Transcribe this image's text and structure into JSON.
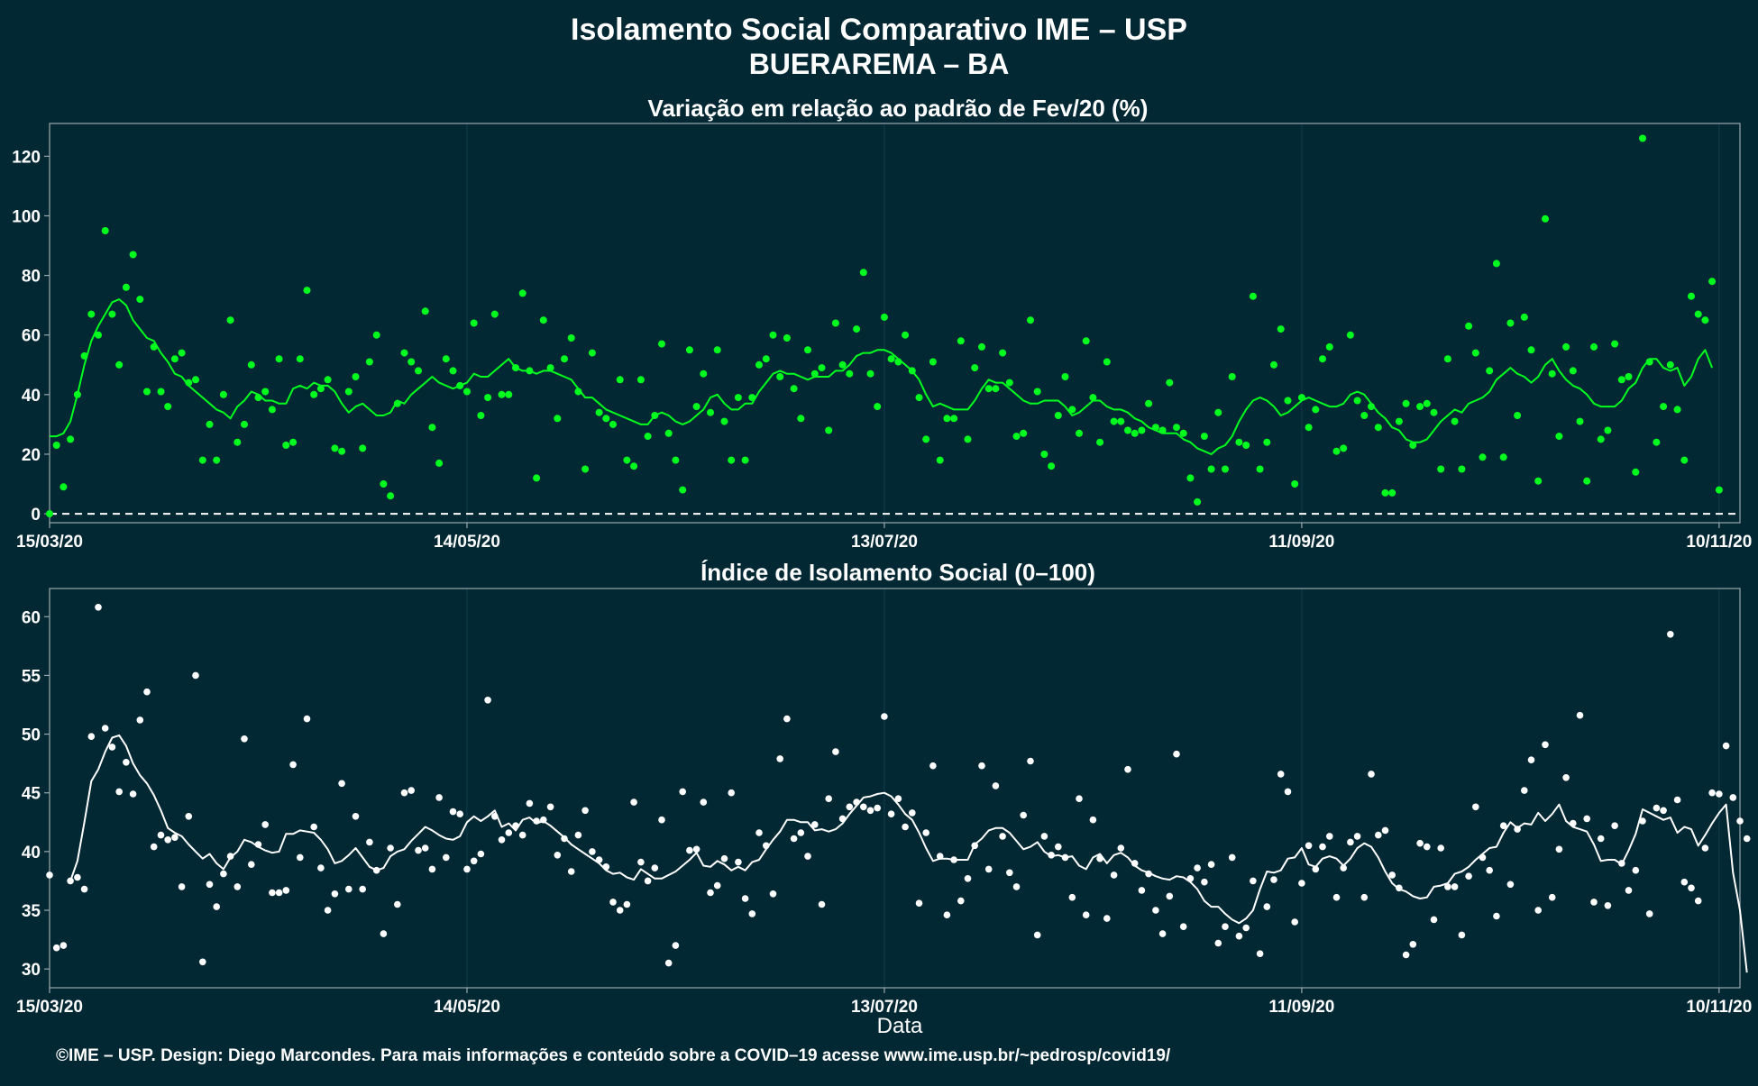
{
  "title_line1": "Isolamento Social Comparativo IME – USP",
  "title_line2": "BUERAREMA – BA",
  "xlabel": "Data",
  "footer": "©IME – USP. Design: Diego Marcondes. Para mais informações e conteúdo sobre a COVID–19 acesse www.ime.usp.br/~pedrosp/covid19/",
  "colors": {
    "background": "#022834",
    "panel_border": "#9aa7ab",
    "grid": "#0e3a46",
    "variation": "#00ff1e",
    "index": "#ffffff",
    "text": "#ffffff"
  },
  "chart_data": [
    {
      "type": "scatter",
      "title": "Variação em relação ao padrão de Fev/20 (%)",
      "xlim": [
        "2020-03-15",
        "2020-11-13"
      ],
      "x_ticks": [
        "15/03/20",
        "14/05/20",
        "13/07/20",
        "11/09/20",
        "10/11/20"
      ],
      "ylim": [
        -3,
        131
      ],
      "y_ticks": [
        0,
        20,
        40,
        60,
        80,
        100,
        120
      ],
      "reference_line": 0,
      "grid": true,
      "series": [
        {
          "kind": "points",
          "x_start": "2020-03-15",
          "step_days": 1,
          "values": [
            0,
            23,
            9,
            25,
            40,
            53,
            67,
            60,
            95,
            67,
            50,
            76,
            87,
            72,
            41,
            56,
            41,
            36,
            52,
            54,
            44,
            45,
            18,
            30,
            18,
            40,
            65,
            24,
            30,
            50,
            39,
            41,
            35,
            52,
            23,
            24,
            52,
            75,
            40,
            42,
            45,
            22,
            21,
            41,
            46,
            22,
            51,
            60,
            10,
            6,
            37,
            54,
            51,
            48,
            68,
            29,
            17,
            52,
            48,
            43,
            41,
            64,
            33,
            39,
            67,
            40,
            40,
            49,
            74,
            48,
            12,
            65,
            49,
            32,
            52,
            59,
            41,
            15,
            54,
            34,
            32,
            30,
            45,
            18,
            16,
            45,
            26,
            33,
            57,
            27,
            18,
            8,
            55,
            36,
            47,
            34,
            55,
            31,
            18,
            39,
            18,
            39,
            50,
            52,
            60,
            46,
            59,
            42,
            32,
            55,
            47,
            49,
            28,
            64,
            50,
            47,
            62,
            81,
            47,
            36,
            66,
            52,
            51,
            60,
            48,
            39,
            25,
            51,
            18,
            32,
            32,
            58,
            25,
            49,
            56,
            42,
            42,
            54,
            44,
            26,
            27,
            65,
            41,
            20,
            16,
            33,
            46,
            35,
            27,
            58,
            39,
            24,
            51,
            31,
            31,
            28,
            27,
            28,
            37,
            29,
            28,
            44,
            29,
            27,
            12,
            4,
            26,
            15,
            34,
            15,
            46,
            24,
            23,
            73,
            15,
            24,
            50,
            62,
            38,
            10,
            39,
            29,
            35,
            52,
            56,
            21,
            22,
            60,
            38,
            33,
            36,
            29,
            7,
            7,
            31,
            37,
            23,
            36,
            37,
            34,
            15,
            52,
            31,
            15,
            63,
            54,
            19,
            48,
            84,
            19,
            64,
            33,
            66,
            55,
            11,
            99,
            47,
            26,
            56,
            48,
            31,
            11,
            56,
            25,
            28,
            57,
            45,
            46,
            14,
            126,
            51,
            24,
            36,
            50,
            35,
            18,
            73,
            67,
            65,
            78,
            8
          ]
        },
        {
          "kind": "moving_average_line",
          "x_start": "2020-03-15",
          "step_days": 1,
          "values": [
            26,
            26,
            27,
            31,
            40,
            50,
            58,
            63,
            67,
            71,
            72,
            70,
            65,
            62,
            59,
            58,
            54,
            51,
            47,
            46,
            43,
            41,
            39,
            37,
            35,
            34,
            32,
            36,
            38,
            41,
            40,
            38,
            38,
            37,
            37,
            42,
            43,
            42,
            44,
            43,
            43,
            41,
            37,
            34,
            36,
            37,
            35,
            33,
            33,
            34,
            38,
            37,
            40,
            42,
            44,
            46,
            44,
            43,
            42,
            43,
            44,
            47,
            46,
            46,
            48,
            50,
            52,
            49,
            48,
            48,
            47,
            48,
            48,
            47,
            46,
            45,
            42,
            39,
            39,
            37,
            35,
            34,
            33,
            32,
            31,
            30,
            30,
            33,
            34,
            33,
            31,
            30,
            31,
            33,
            35,
            39,
            40,
            37,
            35,
            35,
            37,
            37,
            41,
            44,
            47,
            48,
            47,
            47,
            46,
            45,
            46,
            46,
            46,
            48,
            48,
            50,
            53,
            54,
            54,
            55,
            55,
            54,
            52,
            50,
            48,
            45,
            40,
            36,
            37,
            36,
            35,
            35,
            35,
            38,
            42,
            45,
            44,
            44,
            42,
            40,
            38,
            37,
            37,
            38,
            38,
            38,
            36,
            33,
            34,
            36,
            38,
            38,
            36,
            35,
            35,
            34,
            32,
            31,
            29,
            28,
            27,
            27,
            27,
            25,
            24,
            22,
            21,
            20,
            22,
            23,
            26,
            31,
            35,
            38,
            39,
            38,
            36,
            33,
            34,
            36,
            38,
            39,
            38,
            37,
            36,
            36,
            37,
            40,
            41,
            40,
            37,
            34,
            32,
            29,
            28,
            25,
            24,
            24,
            25,
            28,
            31,
            33,
            35,
            34,
            37,
            38,
            39,
            41,
            45,
            47,
            49,
            47,
            46,
            44,
            46,
            50,
            52,
            48,
            45,
            43,
            42,
            40,
            37,
            36,
            36,
            36,
            38,
            42,
            44,
            49,
            52,
            52,
            49,
            48,
            49,
            43,
            46,
            52,
            55,
            49
          ]
        }
      ]
    },
    {
      "type": "scatter",
      "title": "Índice de Isolamento Social (0–100)",
      "xlim": [
        "2020-03-15",
        "2020-11-13"
      ],
      "x_ticks": [
        "15/03/20",
        "14/05/20",
        "13/07/20",
        "11/09/20",
        "10/11/20"
      ],
      "ylim": [
        28.4,
        62.4
      ],
      "y_ticks": [
        30,
        35,
        40,
        45,
        50,
        55,
        60
      ],
      "grid": true,
      "series": [
        {
          "kind": "points",
          "x_start": "2020-03-15",
          "step_days": 1,
          "values": [
            38,
            31.8,
            32,
            37.5,
            37.8,
            36.8,
            49.8,
            60.8,
            50.5,
            48.9,
            45.1,
            47.6,
            44.9,
            51.2,
            53.6,
            40.4,
            41.4,
            41,
            41.2,
            37,
            43,
            55,
            30.6,
            37.2,
            35.3,
            38.1,
            39.6,
            37,
            49.6,
            38.9,
            40.6,
            42.3,
            36.5,
            36.5,
            36.7,
            47.4,
            39.5,
            51.3,
            42.1,
            38.6,
            35,
            36.4,
            45.8,
            36.8,
            43,
            36.8,
            40.8,
            38.4,
            33,
            40.3,
            35.5,
            45,
            45.2,
            40.1,
            40.3,
            38.5,
            44.6,
            39.5,
            43.4,
            43.2,
            38.5,
            39.2,
            39.8,
            52.9,
            43,
            41,
            41.6,
            42.2,
            41.4,
            44.1,
            42.6,
            42.7,
            43.8,
            39.7,
            41.1,
            38.3,
            41.4,
            43.5,
            40,
            39.3,
            38.7,
            35.7,
            35,
            35.5,
            44.2,
            39.1,
            37.5,
            38.6,
            42.7,
            30.5,
            32,
            45.1,
            40.1,
            40.2,
            44.2,
            36.5,
            37.1,
            39.4,
            45,
            39.1,
            36,
            34.7,
            41.6,
            40.5,
            36.4,
            47.9,
            51.3,
            41.1,
            41.6,
            39.6,
            42.3,
            35.5,
            44.5,
            48.5,
            42.8,
            43.8,
            44.2,
            43.8,
            43.5,
            43.7,
            51.5,
            43.2,
            44.5,
            42.1,
            43.3,
            35.6,
            41.6,
            47.3,
            39.6,
            34.6,
            39.3,
            35.8,
            37.7,
            40.5,
            47.3,
            38.5,
            45.6,
            41.3,
            38.2,
            37,
            43.1,
            47.7,
            32.9,
            41.3,
            39.7,
            40.4,
            39.5,
            36.1,
            44.5,
            34.6,
            42.7,
            39.4,
            34.3,
            38,
            40.3,
            47,
            39,
            36.7,
            38.1,
            35,
            33,
            36.2,
            48.3,
            33.6,
            37.7,
            38.6,
            37.4,
            38.9,
            32.2,
            33.6,
            39.5,
            32.8,
            33.5,
            37.5,
            31.3,
            35.3,
            37.6,
            46.6,
            45.1,
            34,
            37.3,
            40.5,
            38.5,
            40.4,
            41.3,
            36.1,
            38.6,
            40.8,
            41.3,
            36.1,
            46.6,
            41.4,
            41.8,
            38,
            36.9,
            31.2,
            32.1,
            40.7,
            40.4,
            34.2,
            40.3,
            37,
            37,
            32.9,
            37.9,
            43.8,
            39.5,
            38.4,
            34.5,
            42.2,
            37.2,
            41.9,
            45.2,
            47.8,
            35,
            49.1,
            36.1,
            40.2,
            46.3,
            42.4,
            51.6,
            42.8,
            35.7,
            41.1,
            35.4,
            42.2,
            39,
            36.7,
            38.4,
            42.6,
            34.7,
            43.7,
            43.5,
            58.5,
            44.4,
            37.4,
            36.9,
            35.8,
            40.3,
            45,
            44.9,
            49,
            44.6,
            42.6,
            41.1
          ]
        },
        {
          "kind": "moving_average_line",
          "x_start": "2020-03-15",
          "step_days": 1,
          "values": [
            null,
            null,
            null,
            37.5,
            39.2,
            42.5,
            46,
            47,
            48.5,
            49.7,
            49.9,
            49,
            47.5,
            46.5,
            45.8,
            44.8,
            43.5,
            42,
            41.6,
            41.3,
            40.6,
            40,
            39.4,
            39.8,
            39,
            38.5,
            39.5,
            40,
            41,
            40.8,
            40.4,
            40.1,
            39.9,
            40,
            41.5,
            41.5,
            41.8,
            41.7,
            41.6,
            41,
            40.2,
            39,
            39.2,
            39.7,
            40.3,
            39.5,
            38.7,
            38.4,
            38.6,
            39.6,
            40,
            40.2,
            40.9,
            41.5,
            42.1,
            41.8,
            41.4,
            41.1,
            41,
            41.3,
            42.5,
            43,
            42.6,
            43,
            43.5,
            42.1,
            42.4,
            41.8,
            42.7,
            42.9,
            42.4,
            42.6,
            42.2,
            41.7,
            41.2,
            40.6,
            40.2,
            39.8,
            39.4,
            39,
            38.4,
            38.1,
            38.2,
            37.8,
            37.6,
            38.5,
            38.1,
            37.7,
            37.7,
            38,
            38.3,
            38.8,
            39.3,
            39.9,
            38.8,
            38.7,
            39.2,
            38.9,
            38.4,
            38.7,
            38.4,
            39.1,
            39.3,
            40.2,
            41,
            41.7,
            42.7,
            42.7,
            42.5,
            42.5,
            41.8,
            41.9,
            41.7,
            41.9,
            42.4,
            43.2,
            43.9,
            44.6,
            44.7,
            44.9,
            45,
            44.7,
            44,
            43.2,
            42.7,
            41.6,
            40.3,
            39.2,
            39.4,
            39.4,
            39.3,
            39.3,
            39.3,
            40.6,
            41.1,
            41.8,
            42,
            42,
            41.6,
            40.9,
            40.2,
            40.4,
            40.8,
            40,
            39.6,
            39.7,
            39.5,
            39.6,
            38.8,
            38.5,
            39.5,
            39.8,
            39,
            39.7,
            39.9,
            39.5,
            38.8,
            38.4,
            38.2,
            37.9,
            37.7,
            37.6,
            37.9,
            37.8,
            37.4,
            36.8,
            35.8,
            35.3,
            35.3,
            34.7,
            34.2,
            33.9,
            34.3,
            35,
            36.8,
            38.3,
            38.2,
            38.4,
            39.4,
            39.5,
            40.3,
            38.9,
            38.7,
            39.4,
            39.6,
            39.4,
            38.8,
            39.4,
            40.3,
            40.7,
            40.4,
            39.5,
            38.3,
            37.3,
            36.8,
            36.6,
            36.2,
            36,
            36.1,
            37,
            37.1,
            37.3,
            38.1,
            38.3,
            38.7,
            39.3,
            39.8,
            40.3,
            40.4,
            41.6,
            42.5,
            42,
            42.4,
            42.3,
            43.3,
            42.6,
            43.2,
            44,
            42.6,
            42.1,
            41.9,
            41.7,
            40.6,
            39.2,
            39.3,
            39.3,
            38.9,
            40.1,
            41.5,
            43.6,
            43.3,
            43,
            42.7,
            42.9,
            41.6,
            42.1,
            41.9,
            40.5,
            41.4,
            42.4,
            43.3,
            44,
            38.2,
            35,
            29.7
          ]
        }
      ]
    }
  ]
}
